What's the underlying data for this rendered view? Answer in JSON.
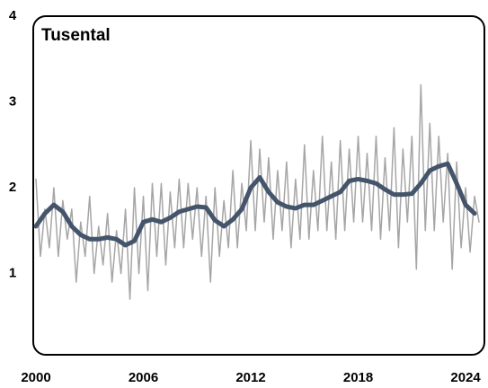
{
  "chart_data": {
    "type": "line",
    "title": "Tusental",
    "xlim": [
      2000,
      2025
    ],
    "xticks": [
      2000,
      2006,
      2012,
      2018,
      2024
    ],
    "ylim": [
      0,
      4
    ],
    "yticks": [
      1,
      2,
      3,
      4
    ],
    "grid": false,
    "series": [
      {
        "color": "#a6a6a6",
        "width": 1.5,
        "x": [
          2000,
          2000.25,
          2000.5,
          2000.75,
          2001,
          2001.25,
          2001.5,
          2001.75,
          2002,
          2002.25,
          2002.5,
          2002.75,
          2003,
          2003.25,
          2003.5,
          2003.75,
          2004,
          2004.25,
          2004.5,
          2004.75,
          2005,
          2005.25,
          2005.5,
          2005.75,
          2006,
          2006.25,
          2006.5,
          2006.75,
          2007,
          2007.25,
          2007.5,
          2007.75,
          2008,
          2008.25,
          2008.5,
          2008.75,
          2009,
          2009.25,
          2009.5,
          2009.75,
          2010,
          2010.25,
          2010.5,
          2010.75,
          2011,
          2011.25,
          2011.5,
          2011.75,
          2012,
          2012.25,
          2012.5,
          2012.75,
          2013,
          2013.25,
          2013.5,
          2013.75,
          2014,
          2014.25,
          2014.5,
          2014.75,
          2015,
          2015.25,
          2015.5,
          2015.75,
          2016,
          2016.25,
          2016.5,
          2016.75,
          2017,
          2017.25,
          2017.5,
          2017.75,
          2018,
          2018.25,
          2018.5,
          2018.75,
          2019,
          2019.25,
          2019.5,
          2019.75,
          2020,
          2020.25,
          2020.5,
          2020.75,
          2021,
          2021.25,
          2021.5,
          2021.75,
          2022,
          2022.25,
          2022.5,
          2022.75,
          2023,
          2023.25,
          2023.5,
          2023.75,
          2024,
          2024.25,
          2024.5,
          2024.75
        ],
        "values": [
          2.1,
          1.2,
          1.75,
          1.3,
          2.0,
          1.2,
          1.85,
          1.4,
          1.75,
          0.9,
          1.6,
          1.2,
          1.9,
          1.0,
          1.55,
          1.1,
          1.7,
          0.9,
          1.5,
          1.0,
          1.75,
          0.7,
          2.0,
          1.0,
          1.9,
          0.8,
          2.05,
          1.2,
          2.05,
          1.1,
          1.95,
          1.3,
          2.1,
          1.3,
          2.05,
          1.4,
          2.0,
          1.2,
          1.9,
          0.9,
          2.0,
          1.2,
          1.85,
          1.3,
          2.2,
          1.3,
          2.05,
          1.5,
          2.55,
          1.5,
          2.45,
          1.6,
          2.35,
          1.4,
          2.2,
          1.5,
          2.3,
          1.3,
          2.1,
          1.4,
          2.5,
          1.4,
          2.2,
          1.5,
          2.6,
          1.5,
          2.3,
          1.4,
          2.55,
          1.5,
          2.45,
          1.6,
          2.6,
          1.6,
          2.4,
          1.5,
          2.6,
          1.4,
          2.35,
          1.5,
          2.7,
          1.3,
          2.45,
          1.6,
          2.6,
          1.05,
          3.2,
          1.5,
          2.75,
          1.5,
          2.6,
          1.6,
          2.4,
          1.05,
          2.3,
          1.3,
          2.0,
          1.25,
          1.9,
          1.6
        ]
      },
      {
        "color": "#44546a",
        "width": 5,
        "x": [
          2000,
          2000.5,
          2001,
          2001.5,
          2002,
          2002.5,
          2003,
          2003.5,
          2004,
          2004.5,
          2005,
          2005.5,
          2006,
          2006.5,
          2007,
          2007.5,
          2008,
          2008.5,
          2009,
          2009.5,
          2010,
          2010.5,
          2011,
          2011.5,
          2012,
          2012.5,
          2013,
          2013.5,
          2014,
          2014.5,
          2015,
          2015.5,
          2016,
          2016.5,
          2017,
          2017.5,
          2018,
          2018.5,
          2019,
          2019.5,
          2020,
          2020.5,
          2021,
          2021.5,
          2022,
          2022.5,
          2023,
          2023.5,
          2024,
          2024.5
        ],
        "values": [
          1.55,
          1.7,
          1.8,
          1.72,
          1.55,
          1.45,
          1.4,
          1.4,
          1.42,
          1.4,
          1.33,
          1.38,
          1.6,
          1.63,
          1.6,
          1.65,
          1.72,
          1.75,
          1.78,
          1.77,
          1.62,
          1.55,
          1.63,
          1.75,
          2.0,
          2.12,
          1.95,
          1.83,
          1.78,
          1.76,
          1.8,
          1.8,
          1.85,
          1.9,
          1.95,
          2.08,
          2.1,
          2.08,
          2.05,
          1.98,
          1.92,
          1.92,
          1.93,
          2.05,
          2.2,
          2.25,
          2.28,
          2.05,
          1.8,
          1.7
        ]
      }
    ]
  }
}
